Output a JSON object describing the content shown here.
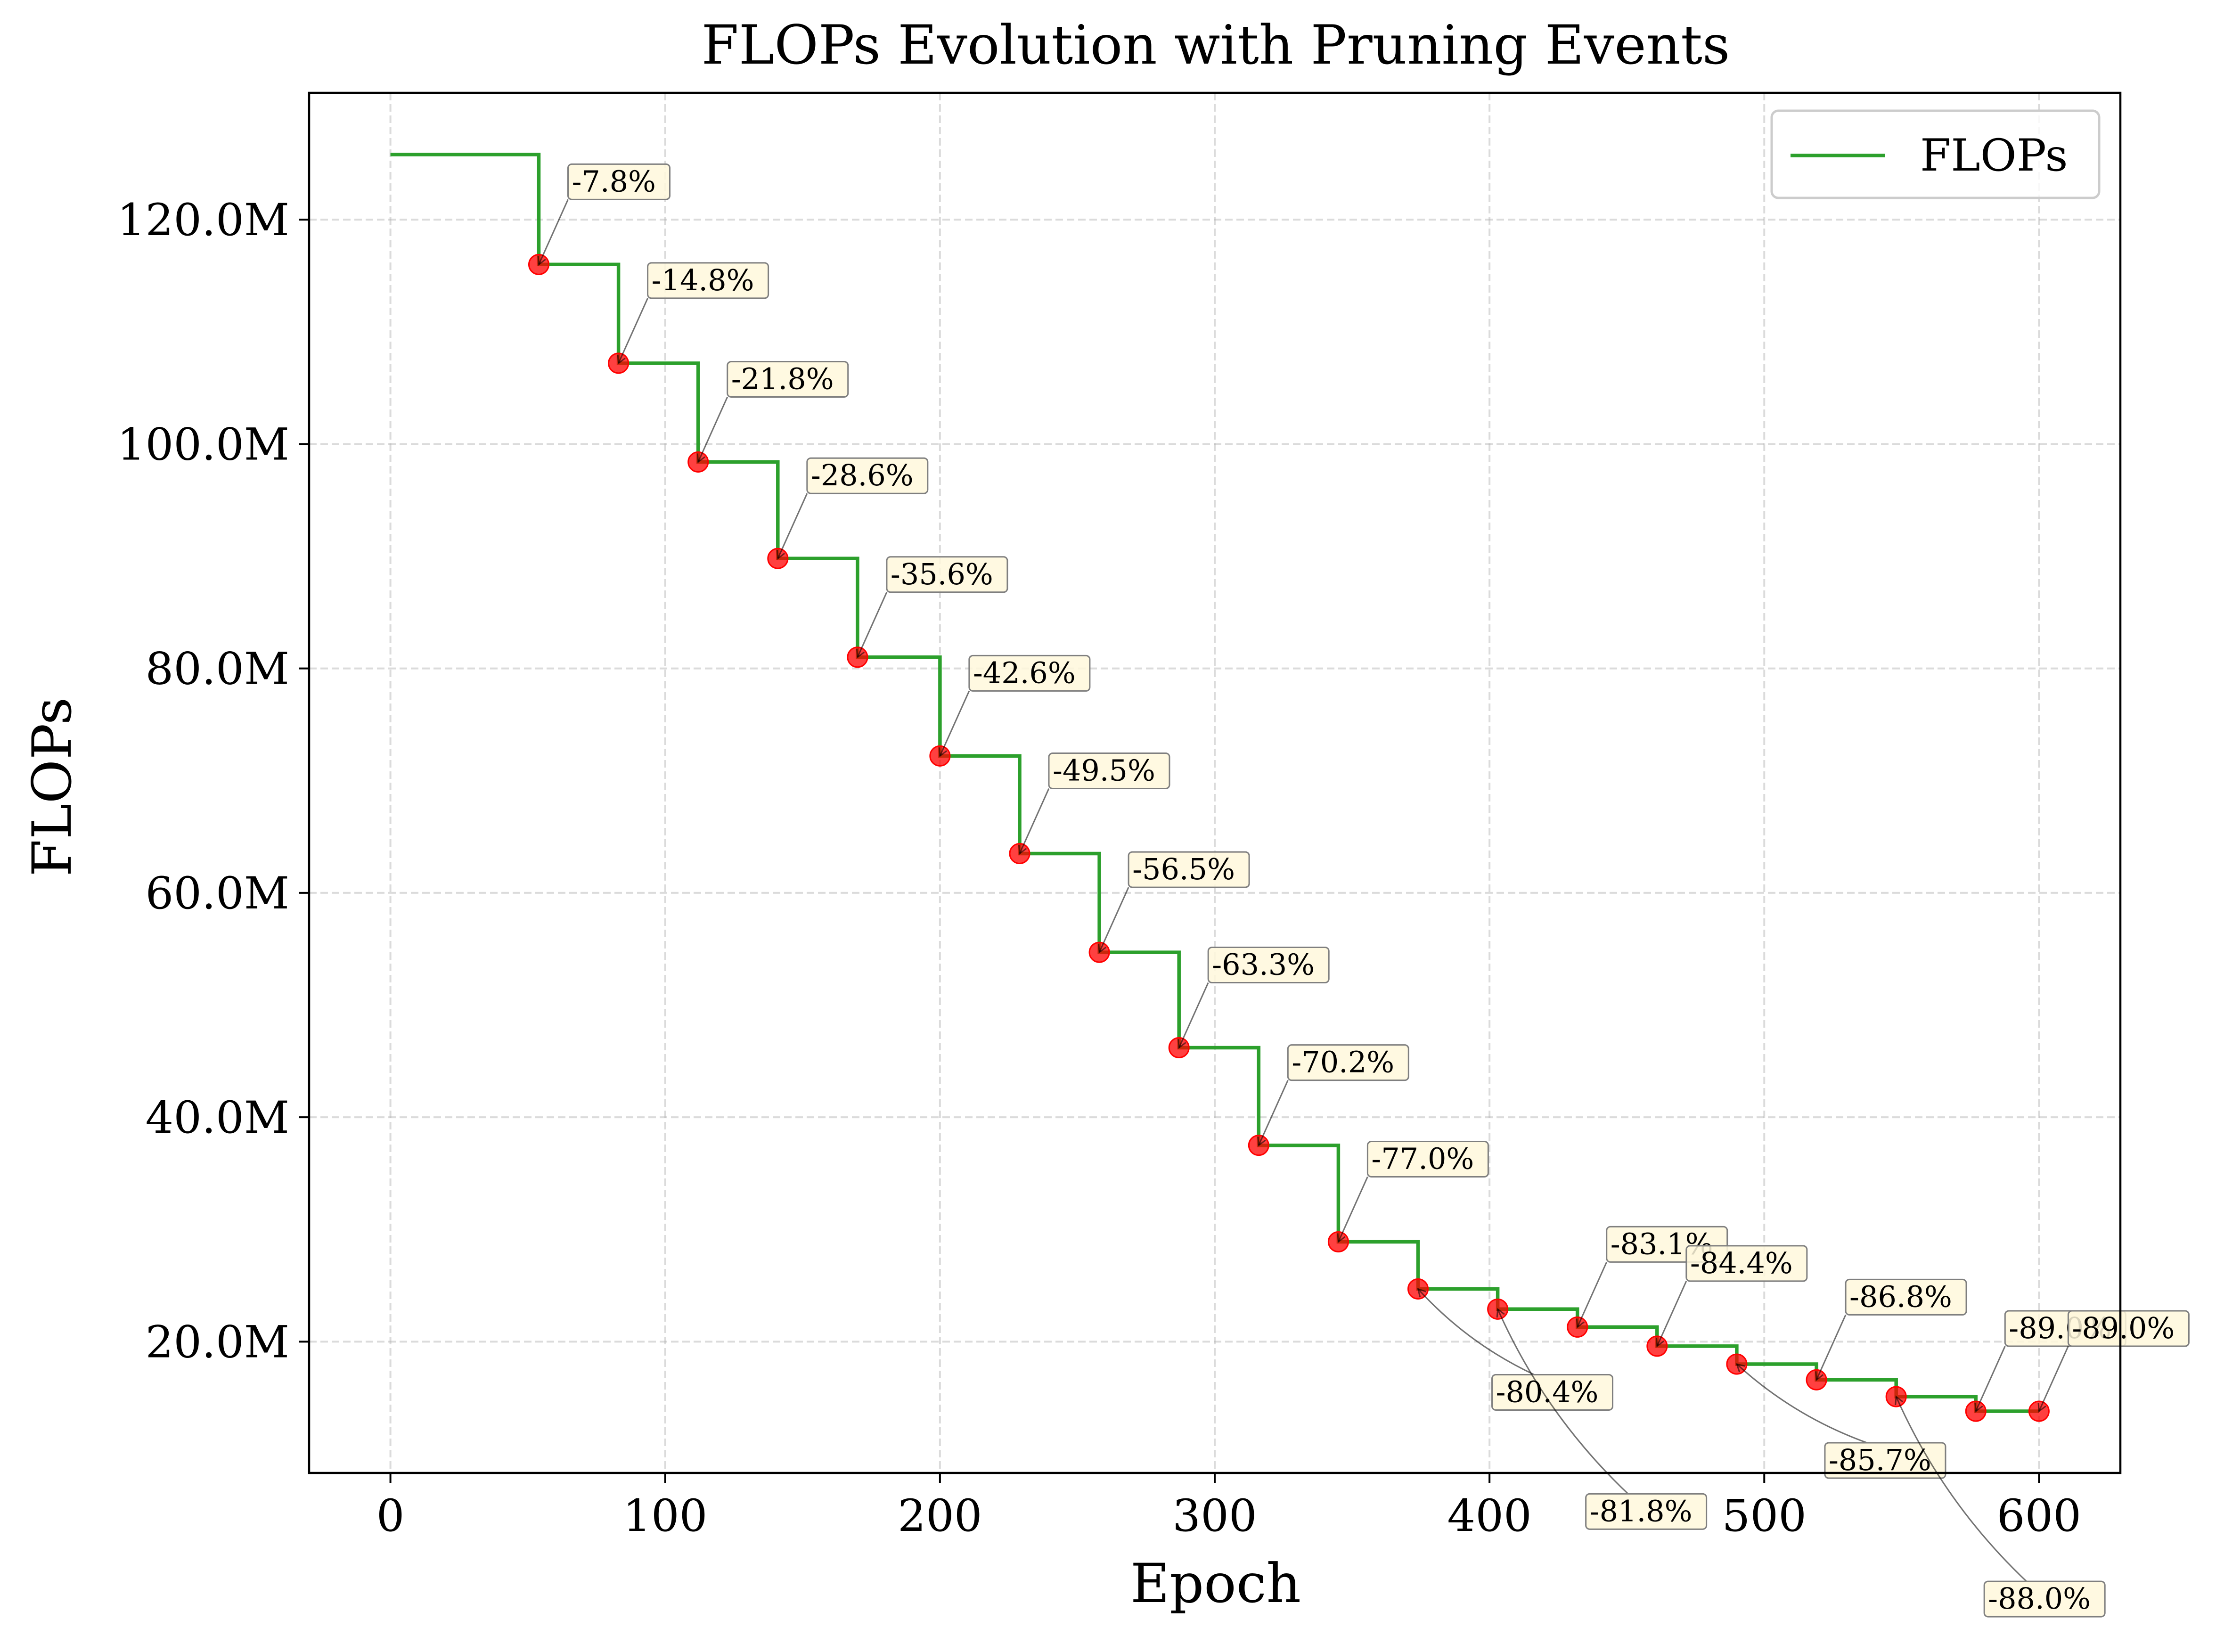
{
  "chart_data": {
    "type": "line",
    "title": "FLOPs Evolution with Pruning Events",
    "xlabel": "Epoch",
    "ylabel": "FLOPs",
    "xlim": [
      -29.6,
      629.6
    ],
    "ylim": [
      8.3,
      131.3
    ],
    "x_ticks": [
      0,
      100,
      200,
      300,
      400,
      500,
      600
    ],
    "x_tick_labels": [
      "0",
      "100",
      "200",
      "300",
      "400",
      "500",
      "600"
    ],
    "y_ticks": [
      20,
      40,
      60,
      80,
      100,
      120
    ],
    "y_tick_labels": [
      "20.0M",
      "40.0M",
      "60.0M",
      "80.0M",
      "100.0M",
      "120.0M"
    ],
    "y_unit": "M",
    "grid": true,
    "legend": {
      "position": "upper right",
      "entries": [
        "FLOPs"
      ]
    },
    "series": [
      {
        "name": "FLOPs",
        "color": "#2ca02c",
        "style": "step",
        "x": [
          0,
          54,
          54,
          83,
          83,
          112,
          112,
          141,
          141,
          170,
          170,
          200,
          200,
          229,
          229,
          258,
          258,
          287,
          287,
          316,
          316,
          345,
          345,
          374,
          374,
          403,
          403,
          432,
          432,
          461,
          461,
          490,
          490,
          519,
          519,
          548,
          548,
          577,
          577,
          600
        ],
        "y": [
          125.8,
          125.8,
          116.0,
          116.0,
          107.2,
          107.2,
          98.4,
          98.4,
          89.8,
          89.8,
          81.0,
          81.0,
          72.2,
          72.2,
          63.5,
          63.5,
          54.7,
          54.7,
          46.2,
          46.2,
          37.5,
          37.5,
          28.9,
          28.9,
          24.7,
          24.7,
          22.9,
          22.9,
          21.3,
          21.3,
          19.6,
          19.6,
          18.0,
          18.0,
          16.6,
          16.6,
          15.1,
          15.1,
          13.8,
          13.8
        ]
      }
    ],
    "pruning_events": {
      "marker_color": "#ff0000",
      "box_color": "#fff8dc",
      "points": [
        {
          "x": 54,
          "y": 116.0,
          "label": "-7.8%"
        },
        {
          "x": 83,
          "y": 107.2,
          "label": "-14.8%"
        },
        {
          "x": 112,
          "y": 98.4,
          "label": "-21.8%"
        },
        {
          "x": 141,
          "y": 89.8,
          "label": "-28.6%"
        },
        {
          "x": 170,
          "y": 81.0,
          "label": "-35.6%"
        },
        {
          "x": 200,
          "y": 72.2,
          "label": "-42.6%"
        },
        {
          "x": 229,
          "y": 63.5,
          "label": "-49.5%"
        },
        {
          "x": 258,
          "y": 54.7,
          "label": "-56.5%"
        },
        {
          "x": 287,
          "y": 46.2,
          "label": "-63.3%"
        },
        {
          "x": 316,
          "y": 37.5,
          "label": "-70.2%"
        },
        {
          "x": 345,
          "y": 28.9,
          "label": "-77.0%"
        },
        {
          "x": 374,
          "y": 24.7,
          "label": "-80.4%"
        },
        {
          "x": 403,
          "y": 22.9,
          "label": "-81.8%"
        },
        {
          "x": 432,
          "y": 21.3,
          "label": "-83.1%"
        },
        {
          "x": 461,
          "y": 19.6,
          "label": "-84.4%"
        },
        {
          "x": 490,
          "y": 18.0,
          "label": "-85.7%"
        },
        {
          "x": 519,
          "y": 16.6,
          "label": "-86.8%"
        },
        {
          "x": 548,
          "y": 15.1,
          "label": "-88.0%"
        },
        {
          "x": 577,
          "y": 13.8,
          "label": "-89.0%"
        },
        {
          "x": 600,
          "y": 13.8,
          "label": "-89.0%"
        }
      ]
    }
  }
}
